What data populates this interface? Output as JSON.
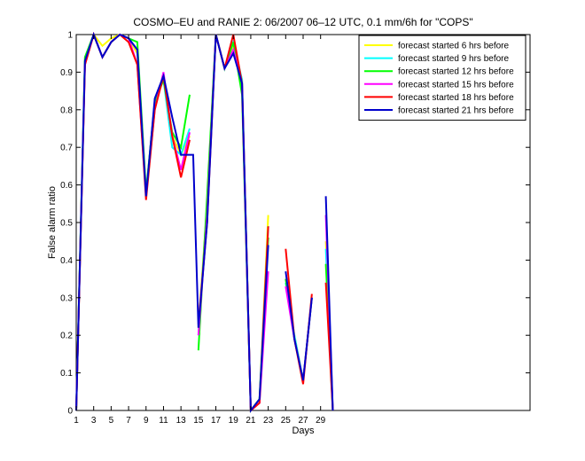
{
  "chart_data": {
    "type": "line",
    "title": "COSMO–EU and RANIE 2: 06/2007 06–12 UTC, 0.1 mm/6h for \"COPS\"",
    "xlabel": "Days",
    "ylabel": "False alarm ratio",
    "xlim": [
      1,
      53
    ],
    "ylim": [
      0,
      1
    ],
    "xticks": [
      1,
      3,
      5,
      7,
      9,
      11,
      13,
      15,
      17,
      19,
      21,
      23,
      25,
      27,
      29
    ],
    "yticks": [
      0,
      0.1,
      0.2,
      0.3,
      0.4,
      0.5,
      0.6,
      0.7,
      0.8,
      0.9,
      1
    ],
    "ytick_labels": [
      "0",
      "0.1",
      "0.2",
      "0.3",
      "0.4",
      "0.5",
      "0.6",
      "0.7",
      "0.8",
      "0.9",
      "1"
    ],
    "grid": false,
    "legend_position": "top-right",
    "x": [
      1,
      2,
      3,
      4,
      5,
      6,
      7,
      8,
      9,
      10,
      11,
      12,
      13,
      14,
      14.4,
      15,
      16,
      17,
      18,
      19,
      20,
      21,
      22,
      23,
      24,
      25,
      26,
      27,
      28,
      29,
      29.6,
      30.4
    ],
    "series": [
      {
        "name": "forecast started 6 hrs before",
        "color": "#ffff00",
        "values": [
          0,
          0.93,
          1,
          0.97,
          0.99,
          1,
          0.99,
          0.95,
          0.58,
          0.82,
          0.88,
          0.73,
          0.68,
          0.73,
          null,
          0.22,
          0.55,
          1,
          0.91,
          0.97,
          0.88,
          0,
          0.03,
          0.52,
          null,
          0.35,
          0.2,
          0.08,
          0.3,
          null,
          0.45,
          0
        ]
      },
      {
        "name": "forecast started 9 hrs before",
        "color": "#00ffff",
        "values": [
          0,
          0.93,
          1,
          0.94,
          0.98,
          1,
          0.99,
          0.96,
          0.58,
          0.82,
          0.88,
          0.7,
          0.68,
          0.75,
          null,
          0.2,
          0.55,
          1,
          0.91,
          0.98,
          0.88,
          0,
          0.03,
          0.49,
          null,
          0.34,
          0.2,
          0.08,
          0.3,
          null,
          0.43,
          0
        ]
      },
      {
        "name": "forecast started 12 hrs before",
        "color": "#00ff00",
        "values": [
          0,
          0.94,
          1,
          0.94,
          0.98,
          1,
          0.99,
          0.98,
          0.58,
          0.82,
          0.88,
          0.74,
          0.7,
          0.84,
          null,
          0.16,
          0.57,
          1,
          0.91,
          0.98,
          0.84,
          0,
          0.03,
          0.46,
          null,
          0.35,
          0.19,
          0.08,
          0.3,
          null,
          0.39,
          0
        ]
      },
      {
        "name": "forecast started 15 hrs before",
        "color": "#ff00ff",
        "values": [
          0,
          0.92,
          1,
          0.94,
          0.98,
          1,
          0.99,
          0.92,
          0.57,
          0.8,
          0.9,
          0.73,
          0.64,
          0.74,
          null,
          0.2,
          0.52,
          1,
          0.91,
          0.96,
          0.87,
          0,
          0.02,
          0.37,
          null,
          0.33,
          0.19,
          0.08,
          0.3,
          null,
          0.52,
          0
        ]
      },
      {
        "name": "forecast started 18 hrs before",
        "color": "#ff0000",
        "values": [
          0,
          0.92,
          1,
          0.94,
          0.98,
          1,
          0.98,
          0.92,
          0.56,
          0.8,
          0.89,
          0.73,
          0.62,
          0.72,
          null,
          0.23,
          0.5,
          1,
          0.91,
          1,
          0.87,
          0,
          0.02,
          0.49,
          null,
          0.43,
          0.19,
          0.07,
          0.31,
          null,
          0.34,
          0
        ]
      },
      {
        "name": "forecast started 21 hrs before",
        "color": "#0000cc",
        "values": [
          0,
          0.93,
          1,
          0.94,
          0.98,
          1,
          0.99,
          0.96,
          0.57,
          0.83,
          0.89,
          0.78,
          0.68,
          0.68,
          0.68,
          0.22,
          0.5,
          1,
          0.91,
          0.95,
          0.87,
          0,
          0.03,
          0.44,
          null,
          0.37,
          0.19,
          0.08,
          0.3,
          null,
          0.57,
          0
        ]
      }
    ]
  }
}
